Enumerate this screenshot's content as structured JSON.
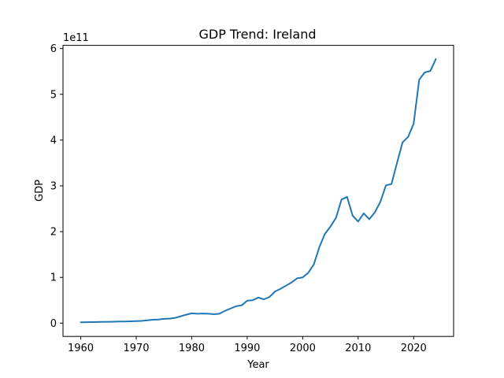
{
  "chart_data": {
    "type": "line",
    "title": "GDP Trend: Ireland",
    "xlabel": "Year",
    "ylabel": "GDP",
    "y_offset_label": "1e11",
    "xlim": [
      1956.8,
      2027.2
    ],
    "ylim": [
      -0.29,
      6.07
    ],
    "x_ticks": [
      1960,
      1970,
      1980,
      1990,
      2000,
      2010,
      2020
    ],
    "y_ticks": [
      0,
      1,
      2,
      3,
      4,
      5,
      6
    ],
    "grid": false,
    "series": [
      {
        "color": "#1f77b4",
        "x": [
          1960,
          1961,
          1962,
          1963,
          1964,
          1965,
          1966,
          1967,
          1968,
          1969,
          1970,
          1971,
          1972,
          1973,
          1974,
          1975,
          1976,
          1977,
          1978,
          1979,
          1980,
          1981,
          1982,
          1983,
          1984,
          1985,
          1986,
          1987,
          1988,
          1989,
          1990,
          1991,
          1992,
          1993,
          1994,
          1995,
          1996,
          1997,
          1998,
          1999,
          2000,
          2001,
          2002,
          2003,
          2004,
          2005,
          2006,
          2007,
          2008,
          2009,
          2010,
          2011,
          2012,
          2013,
          2014,
          2015,
          2016,
          2017,
          2018,
          2019,
          2020,
          2021,
          2022,
          2023,
          2024
        ],
        "y": [
          0.019,
          0.021,
          0.023,
          0.025,
          0.028,
          0.03,
          0.032,
          0.035,
          0.036,
          0.04,
          0.045,
          0.05,
          0.062,
          0.075,
          0.08,
          0.095,
          0.098,
          0.115,
          0.15,
          0.185,
          0.215,
          0.205,
          0.21,
          0.205,
          0.195,
          0.205,
          0.27,
          0.32,
          0.37,
          0.39,
          0.49,
          0.5,
          0.56,
          0.52,
          0.57,
          0.69,
          0.75,
          0.82,
          0.89,
          0.98,
          1.0,
          1.1,
          1.28,
          1.66,
          1.95,
          2.11,
          2.3,
          2.7,
          2.76,
          2.35,
          2.22,
          2.4,
          2.27,
          2.42,
          2.65,
          3.01,
          3.04,
          3.5,
          3.95,
          4.07,
          4.36,
          5.32,
          5.48,
          5.51,
          5.77
        ]
      }
    ]
  }
}
